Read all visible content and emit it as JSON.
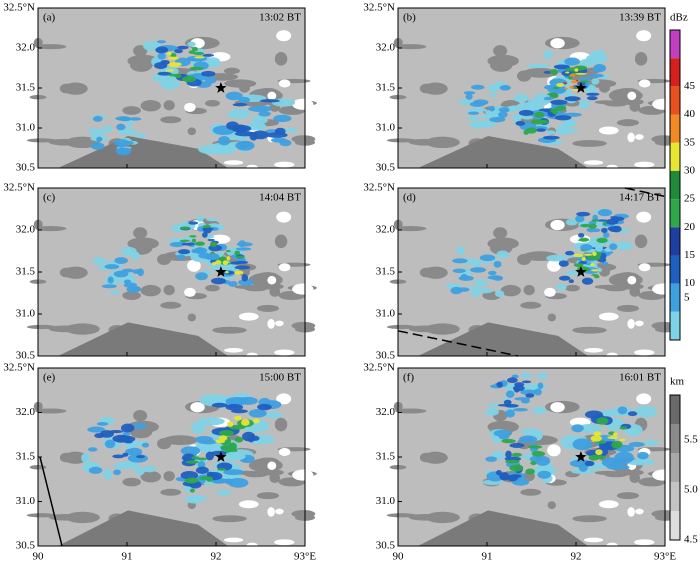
{
  "panels": [
    {
      "label": "(a)",
      "time": "13:02 BT"
    },
    {
      "label": "(b)",
      "time": "13:39 BT"
    },
    {
      "label": "(c)",
      "time": "14:04 BT"
    },
    {
      "label": "(d)",
      "time": "14:17 BT"
    },
    {
      "label": "(e)",
      "time": "15:00 BT"
    },
    {
      "label": "(f)",
      "time": "16:01 BT"
    }
  ],
  "y_tick_labels": [
    "32.5°N",
    "32.0",
    "31.5",
    "31.0",
    "30.5"
  ],
  "x_tick_labels": [
    "90",
    "91",
    "92",
    "93°E"
  ],
  "reflectivity_colorbar": {
    "unit": "dBz",
    "ticks": [
      "45",
      "40",
      "35",
      "30",
      "25",
      "20",
      "15",
      "10",
      "5"
    ]
  },
  "terrain_colorbar": {
    "unit": "km",
    "ticks": [
      "5.5",
      "5.0",
      "4.5"
    ]
  }
}
